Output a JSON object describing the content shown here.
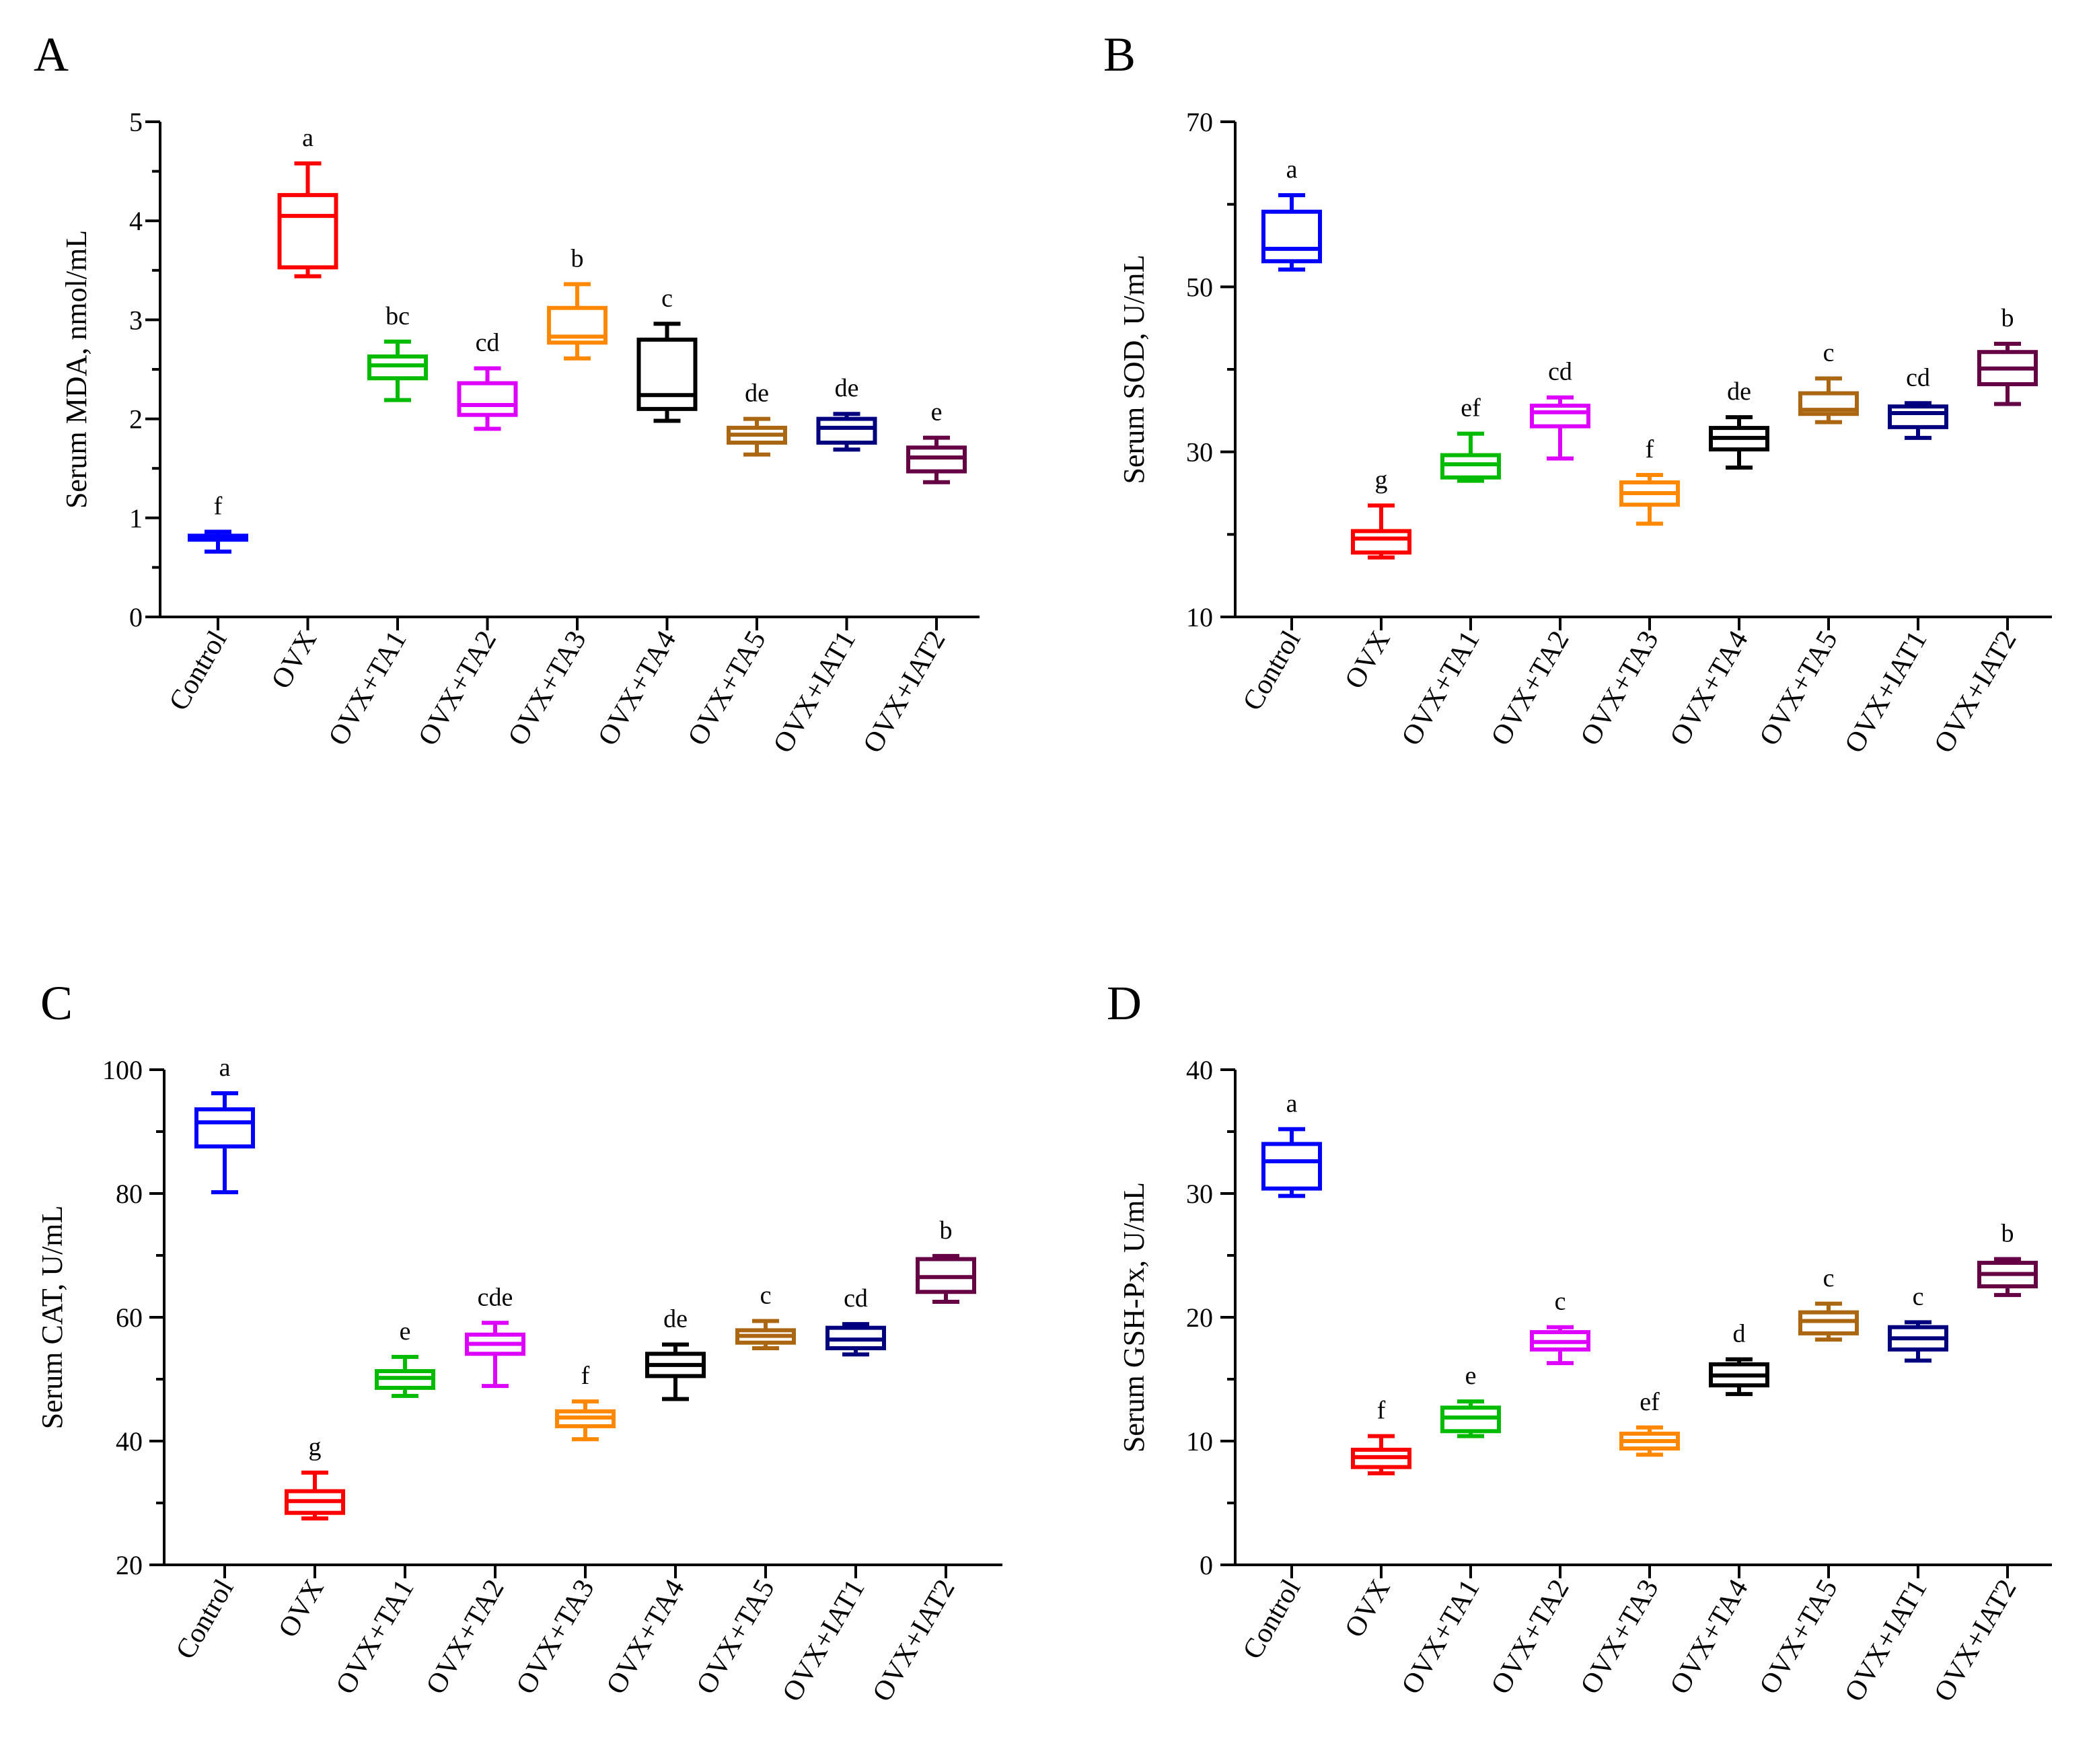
{
  "colors": {
    "Control": "#0000ff",
    "OVX": "#ff0000",
    "OVX+TA1": "#00bb00",
    "OVX+TA2": "#dd00ff",
    "OVX+TA3": "#ff8800",
    "OVX+TA4": "#000000",
    "OVX+TA5": "#aa6611",
    "OVX+IAT1": "#00007f",
    "OVX+IAT2": "#660044"
  },
  "chart_data": [
    {
      "panel": "A",
      "type": "box",
      "ylabel": "Serum MDA, nmol/mL",
      "ylim": [
        0,
        5
      ],
      "yticks": [
        0,
        1,
        2,
        3,
        4,
        5
      ],
      "ymajor_step": 1,
      "yminor_step": 0.5,
      "categories": [
        "Control",
        "OVX",
        "OVX+TA1",
        "OVX+TA2",
        "OVX+TA3",
        "OVX+TA4",
        "OVX+TA5",
        "OVX+IAT1",
        "OVX+IAT2"
      ],
      "letters": [
        "f",
        "a",
        "bc",
        "cd",
        "b",
        "c",
        "de",
        "de",
        "e"
      ],
      "boxes": [
        {
          "min": 0.66,
          "q1": 0.78,
          "median": 0.8,
          "q3": 0.82,
          "max": 0.86
        },
        {
          "min": 3.44,
          "q1": 3.53,
          "median": 4.05,
          "q3": 4.26,
          "max": 4.58
        },
        {
          "min": 2.19,
          "q1": 2.41,
          "median": 2.54,
          "q3": 2.63,
          "max": 2.78
        },
        {
          "min": 1.9,
          "q1": 2.04,
          "median": 2.14,
          "q3": 2.36,
          "max": 2.51
        },
        {
          "min": 2.61,
          "q1": 2.77,
          "median": 2.83,
          "q3": 3.12,
          "max": 3.36
        },
        {
          "min": 1.98,
          "q1": 2.1,
          "median": 2.24,
          "q3": 2.8,
          "max": 2.96
        },
        {
          "min": 1.64,
          "q1": 1.76,
          "median": 1.84,
          "q3": 1.91,
          "max": 2.0
        },
        {
          "min": 1.69,
          "q1": 1.76,
          "median": 1.91,
          "q3": 2.0,
          "max": 2.05
        },
        {
          "min": 1.36,
          "q1": 1.47,
          "median": 1.61,
          "q3": 1.71,
          "max": 1.81
        }
      ]
    },
    {
      "panel": "B",
      "type": "box",
      "ylabel": "Serum SOD, U/mL",
      "ylim": [
        10,
        70
      ],
      "yticks": [
        10,
        30,
        50,
        70
      ],
      "ymajor_step": 20,
      "yminor_step": 10,
      "categories": [
        "Control",
        "OVX",
        "OVX+TA1",
        "OVX+TA2",
        "OVX+TA3",
        "OVX+TA4",
        "OVX+TA5",
        "OVX+IAT1",
        "OVX+IAT2"
      ],
      "letters": [
        "a",
        "g",
        "ef",
        "cd",
        "f",
        "de",
        "c",
        "cd",
        "b"
      ],
      "boxes": [
        {
          "min": 52.1,
          "q1": 53.1,
          "median": 54.6,
          "q3": 59.1,
          "max": 61.1
        },
        {
          "min": 17.2,
          "q1": 17.8,
          "median": 19.5,
          "q3": 20.4,
          "max": 23.5
        },
        {
          "min": 26.5,
          "q1": 26.9,
          "median": 28.5,
          "q3": 29.6,
          "max": 32.2
        },
        {
          "min": 29.2,
          "q1": 33.1,
          "median": 34.8,
          "q3": 35.6,
          "max": 36.6
        },
        {
          "min": 21.3,
          "q1": 23.6,
          "median": 25.0,
          "q3": 26.3,
          "max": 27.2
        },
        {
          "min": 28.1,
          "q1": 30.3,
          "median": 31.7,
          "q3": 32.9,
          "max": 34.2
        },
        {
          "min": 33.6,
          "q1": 34.6,
          "median": 35.1,
          "q3": 37.1,
          "max": 38.9
        },
        {
          "min": 31.7,
          "q1": 33.0,
          "median": 34.7,
          "q3": 35.5,
          "max": 35.9
        },
        {
          "min": 35.8,
          "q1": 38.2,
          "median": 40.1,
          "q3": 42.1,
          "max": 43.1
        }
      ]
    },
    {
      "panel": "C",
      "type": "box",
      "ylabel": "Serum CAT, U/mL",
      "ylim": [
        20,
        100
      ],
      "yticks": [
        20,
        40,
        60,
        80,
        100
      ],
      "ymajor_step": 20,
      "yminor_step": 10,
      "categories": [
        "Control",
        "OVX",
        "OVX+TA1",
        "OVX+TA2",
        "OVX+TA3",
        "OVX+TA4",
        "OVX+TA5",
        "OVX+IAT1",
        "OVX+IAT2"
      ],
      "letters": [
        "a",
        "g",
        "e",
        "cde",
        "f",
        "de",
        "c",
        "cd",
        "b"
      ],
      "boxes": [
        {
          "min": 80.2,
          "q1": 87.6,
          "median": 91.5,
          "q3": 93.6,
          "max": 96.2
        },
        {
          "min": 27.5,
          "q1": 28.4,
          "median": 30.3,
          "q3": 31.9,
          "max": 34.9
        },
        {
          "min": 47.3,
          "q1": 48.6,
          "median": 50.2,
          "q3": 51.3,
          "max": 53.6
        },
        {
          "min": 48.9,
          "q1": 54.1,
          "median": 55.7,
          "q3": 57.2,
          "max": 59.1
        },
        {
          "min": 40.3,
          "q1": 42.4,
          "median": 43.8,
          "q3": 44.8,
          "max": 46.4
        },
        {
          "min": 46.8,
          "q1": 50.5,
          "median": 52.3,
          "q3": 54.1,
          "max": 55.6
        },
        {
          "min": 55.0,
          "q1": 55.9,
          "median": 57.0,
          "q3": 57.9,
          "max": 59.4
        },
        {
          "min": 54.0,
          "q1": 55.0,
          "median": 56.4,
          "q3": 58.3,
          "max": 58.9
        },
        {
          "min": 62.5,
          "q1": 64.1,
          "median": 66.5,
          "q3": 69.4,
          "max": 69.9
        }
      ]
    },
    {
      "panel": "D",
      "type": "box",
      "ylabel": "Serum GSH-Px, U/mL",
      "ylim": [
        0,
        40
      ],
      "yticks": [
        0,
        10,
        20,
        30,
        40
      ],
      "ymajor_step": 10,
      "yminor_step": 5,
      "categories": [
        "Control",
        "OVX",
        "OVX+TA1",
        "OVX+TA2",
        "OVX+TA3",
        "OVX+TA4",
        "OVX+TA5",
        "OVX+IAT1",
        "OVX+IAT2"
      ],
      "letters": [
        "a",
        "f",
        "e",
        "c",
        "ef",
        "d",
        "c",
        "c",
        "b"
      ],
      "boxes": [
        {
          "min": 29.8,
          "q1": 30.4,
          "median": 32.6,
          "q3": 34.0,
          "max": 35.2
        },
        {
          "min": 7.4,
          "q1": 7.9,
          "median": 8.7,
          "q3": 9.3,
          "max": 10.4
        },
        {
          "min": 10.4,
          "q1": 10.8,
          "median": 11.9,
          "q3": 12.7,
          "max": 13.2
        },
        {
          "min": 16.3,
          "q1": 17.4,
          "median": 18.0,
          "q3": 18.8,
          "max": 19.2
        },
        {
          "min": 8.9,
          "q1": 9.4,
          "median": 10.0,
          "q3": 10.6,
          "max": 11.1
        },
        {
          "min": 13.8,
          "q1": 14.5,
          "median": 15.3,
          "q3": 16.2,
          "max": 16.6
        },
        {
          "min": 18.2,
          "q1": 18.7,
          "median": 19.7,
          "q3": 20.4,
          "max": 21.1
        },
        {
          "min": 16.5,
          "q1": 17.4,
          "median": 18.3,
          "q3": 19.2,
          "max": 19.6
        },
        {
          "min": 21.8,
          "q1": 22.5,
          "median": 23.5,
          "q3": 24.4,
          "max": 24.7
        }
      ]
    }
  ]
}
